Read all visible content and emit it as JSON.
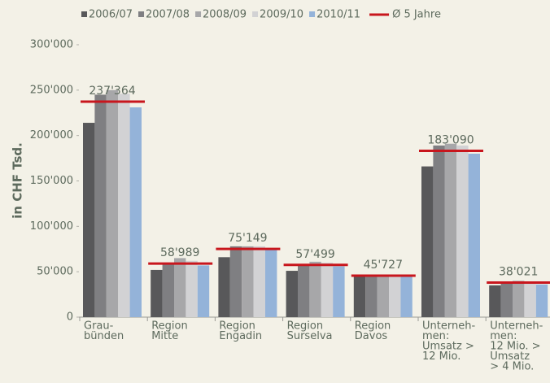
{
  "chart_data": {
    "type": "bar",
    "categories": [
      [
        "Grau-",
        "bünden"
      ],
      [
        "Region",
        "Mitte"
      ],
      [
        "Region",
        "Engadin"
      ],
      [
        "Region",
        "Surselva"
      ],
      [
        "Region",
        "Davos"
      ],
      [
        "Unterneh-",
        "men:",
        "Umsatz >",
        "12 Mio."
      ],
      [
        "Unterneh-",
        "men:",
        "12 Mio. >",
        "Umsatz",
        "> 4 Mio."
      ]
    ],
    "series": [
      {
        "name": "2006/07",
        "color": "#58585a",
        "values": [
          214000,
          52000,
          66000,
          51000,
          45000,
          166000,
          35000
        ]
      },
      {
        "name": "2007/08",
        "color": "#7f7f82",
        "values": [
          245000,
          58000,
          78000,
          57000,
          46000,
          189000,
          38000
        ]
      },
      {
        "name": "2008/09",
        "color": "#a7a7a9",
        "values": [
          250000,
          65000,
          78000,
          61000,
          47000,
          191000,
          40000
        ]
      },
      {
        "name": "2009/10",
        "color": "#d2d2d4",
        "values": [
          246000,
          62000,
          78000,
          60000,
          46000,
          189000,
          39000
        ]
      },
      {
        "name": "2010/11",
        "color": "#94b3d9",
        "values": [
          231000,
          57000,
          75000,
          56000,
          45000,
          180000,
          36000
        ]
      }
    ],
    "average": {
      "name": "Ø 5 Jahre",
      "color": "#c8161d",
      "values": [
        237364,
        58989,
        75149,
        57499,
        45727,
        183090,
        38021
      ],
      "value_labels": [
        "237'364",
        "58'989",
        "75'149",
        "57'499",
        "45'727",
        "183'090",
        "38'021"
      ]
    },
    "ylabel": "in CHF Tsd.",
    "ylim": [
      0,
      300000
    ],
    "yticks": [
      0,
      {
        "value": 50000,
        "label": "50'000"
      },
      {
        "value": 100000,
        "label": "100'000"
      },
      {
        "value": 150000,
        "label": "150'000"
      },
      {
        "value": 200000,
        "label": "200'000"
      },
      {
        "value": 250000,
        "label": "250'000"
      },
      {
        "value": 300000,
        "label": "300'000"
      }
    ]
  }
}
